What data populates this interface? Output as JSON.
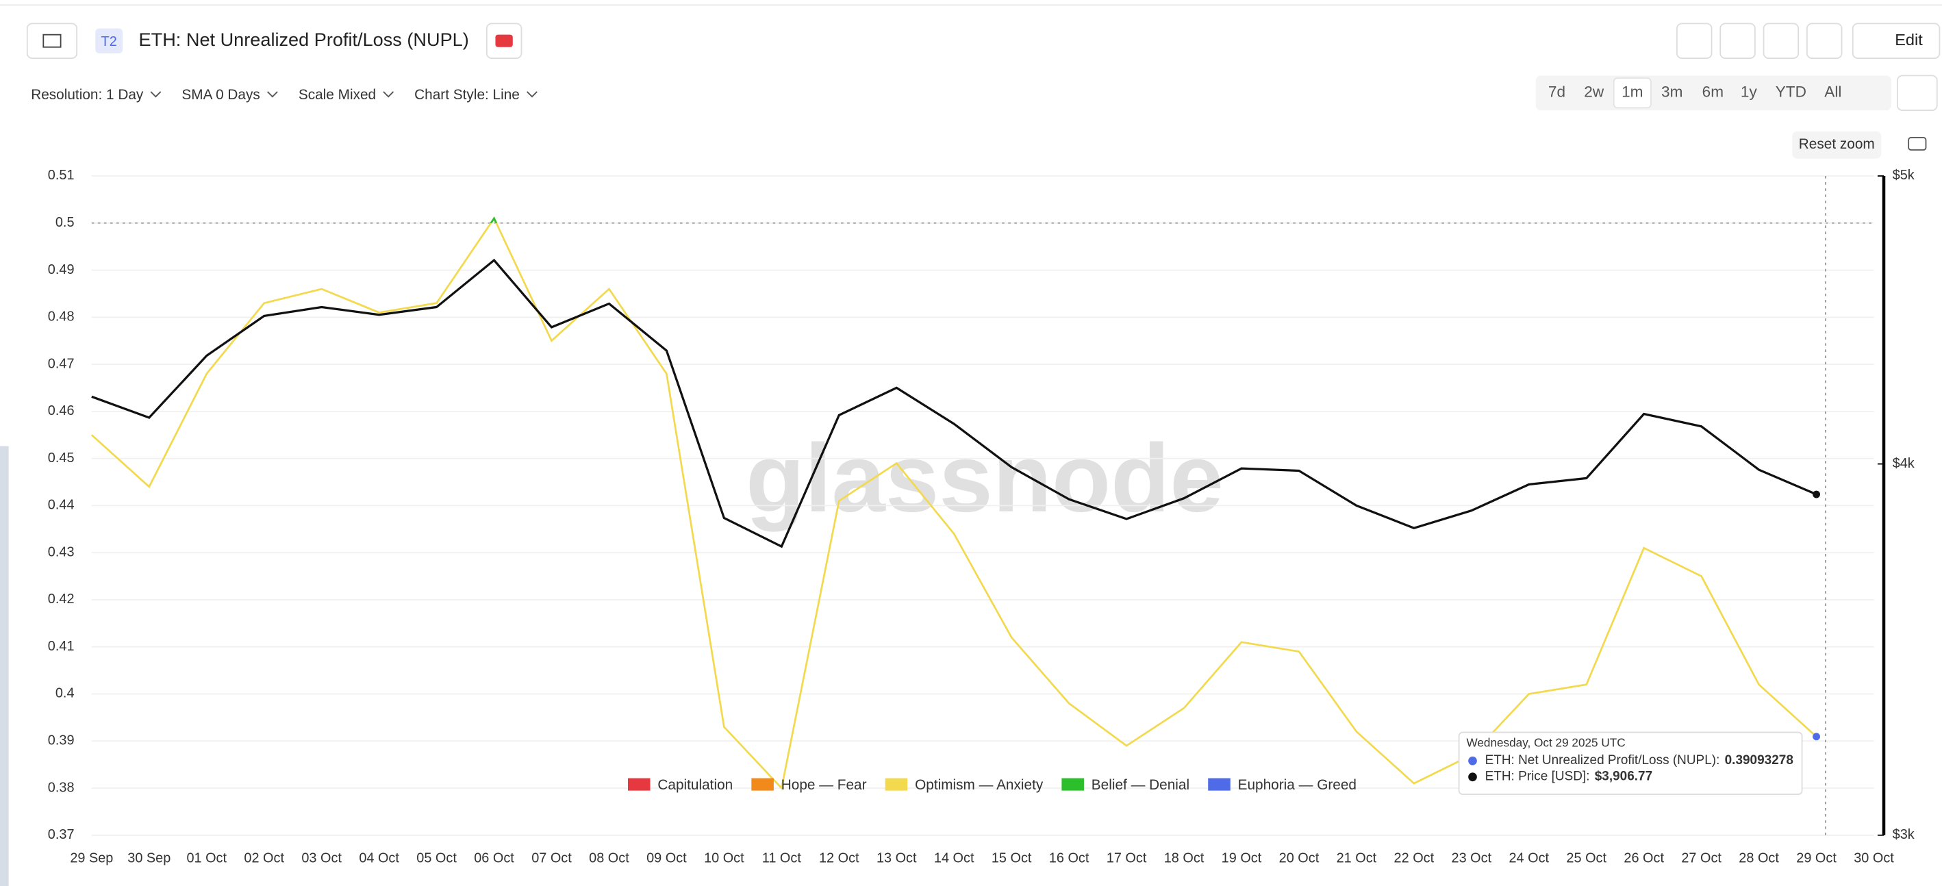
{
  "header": {
    "badge": "T2",
    "title": "ETH: Net Unrealized Profit/Loss (NUPL)",
    "edit": "Edit"
  },
  "controls": [
    "Resolution: 1 Day",
    "SMA 0 Days",
    "Scale Mixed",
    "Chart Style: Line"
  ],
  "ranges": [
    "7d",
    "2w",
    "1m",
    "3m",
    "6m",
    "1y",
    "YTD",
    "All"
  ],
  "active_range": "1m",
  "reset_zoom": "Reset zoom",
  "chart_data": {
    "type": "line",
    "watermark": "glassnode",
    "categories": [
      "29 Sep",
      "30 Sep",
      "01 Oct",
      "02 Oct",
      "03 Oct",
      "04 Oct",
      "05 Oct",
      "06 Oct",
      "07 Oct",
      "08 Oct",
      "09 Oct",
      "10 Oct",
      "11 Oct",
      "12 Oct",
      "13 Oct",
      "14 Oct",
      "15 Oct",
      "16 Oct",
      "17 Oct",
      "18 Oct",
      "19 Oct",
      "20 Oct",
      "21 Oct",
      "22 Oct",
      "23 Oct",
      "24 Oct",
      "25 Oct",
      "26 Oct",
      "27 Oct",
      "28 Oct",
      "29 Oct",
      "30 Oct"
    ],
    "series": [
      {
        "name": "ETH: Net Unrealized Profit/Loss (NUPL)",
        "color": "#f2d94e",
        "above_color": "#2bbf2b",
        "values": [
          0.455,
          0.444,
          0.468,
          0.483,
          0.486,
          0.481,
          0.483,
          0.501,
          0.475,
          0.486,
          0.468,
          0.393,
          0.38,
          0.441,
          0.449,
          0.434,
          0.412,
          0.398,
          0.389,
          0.397,
          0.411,
          0.409,
          0.392,
          0.381,
          0.387,
          0.4,
          0.402,
          0.431,
          0.425,
          0.402,
          0.39093278,
          null
        ]
      },
      {
        "name": "ETH: Price [USD]",
        "color": "#111111",
        "axis": "y2",
        "values": [
          4214,
          4146,
          4350,
          4486,
          4517,
          4490,
          4517,
          4684,
          4447,
          4529,
          4367,
          3836,
          3752,
          4154,
          4243,
          4126,
          3990,
          3892,
          3833,
          3895,
          3986,
          3979,
          3873,
          3806,
          3858,
          3937,
          3956,
          4158,
          4118,
          3982,
          3906.77,
          null
        ]
      }
    ],
    "ylim": [
      0.37,
      0.51
    ],
    "yticks": [
      0.37,
      0.38,
      0.39,
      0.4,
      0.41,
      0.42,
      0.43,
      0.44,
      0.45,
      0.46,
      0.47,
      0.48,
      0.49,
      0.5,
      0.51
    ],
    "y2lim": [
      3000,
      5000
    ],
    "y2log": true,
    "y2ticks": [
      {
        "value": 3000,
        "label": "$3k"
      },
      {
        "value": 4000,
        "label": "$4k"
      },
      {
        "value": 5000,
        "label": "$5k"
      }
    ],
    "grid": true,
    "reference_line": 0.5,
    "legend": [
      {
        "name": "Capitulation",
        "color": "#e5393f"
      },
      {
        "name": "Hope — Fear",
        "color": "#f28a1b"
      },
      {
        "name": "Optimism — Anxiety",
        "color": "#f2d94e"
      },
      {
        "name": "Belief — Denial",
        "color": "#2bbf2b"
      },
      {
        "name": "Euphoria — Greed",
        "color": "#4f6be8"
      }
    ],
    "tooltip": {
      "date": "Wednesday, Oct 29 2025 UTC",
      "rows": [
        {
          "label": "ETH: Net Unrealized Profit/Loss (NUPL):",
          "dot": "#4f6be8"
        },
        {
          "label": "ETH: Price [USD]:",
          "value_label": "$3,906.77",
          "dot": "#111111"
        }
      ]
    }
  }
}
